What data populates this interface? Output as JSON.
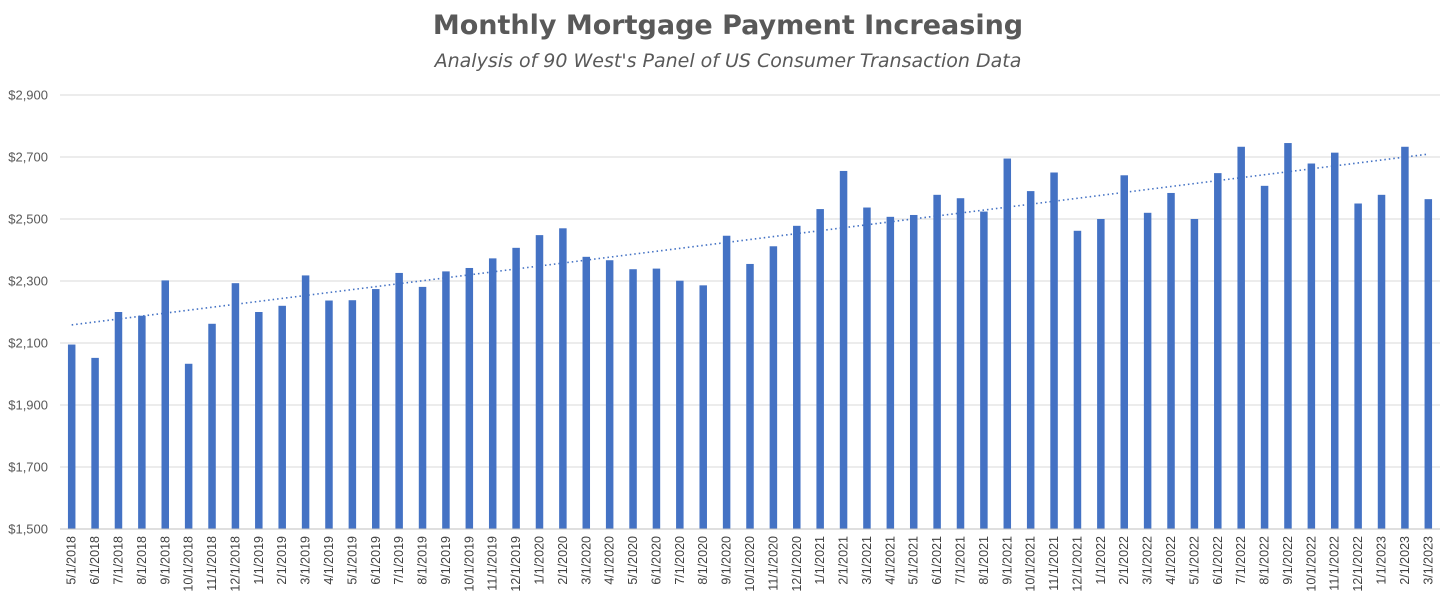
{
  "chart_data": {
    "type": "bar",
    "title": "Monthly Mortgage Payment Increasing",
    "subtitle": "Analysis of 90 West's Panel of US Consumer Transaction Data",
    "xlabel": "",
    "ylabel": "",
    "ylim": [
      1500,
      2900
    ],
    "yticks": [
      1500,
      1700,
      1900,
      2100,
      2300,
      2500,
      2700,
      2900
    ],
    "ytick_labels": [
      "$1,500",
      "$1,700",
      "$1,900",
      "$2,100",
      "$2,300",
      "$2,500",
      "$2,700",
      "$2,900"
    ],
    "grid": true,
    "legend": "none",
    "bar_color": "#4472C4",
    "trendline": {
      "type": "linear",
      "style": "dotted",
      "color": "#4472C4"
    },
    "categories": [
      "5/1/2018",
      "6/1/2018",
      "7/1/2018",
      "8/1/2018",
      "9/1/2018",
      "10/1/2018",
      "11/1/2018",
      "12/1/2018",
      "1/1/2019",
      "2/1/2019",
      "3/1/2019",
      "4/1/2019",
      "5/1/2019",
      "6/1/2019",
      "7/1/2019",
      "8/1/2019",
      "9/1/2019",
      "10/1/2019",
      "11/1/2019",
      "12/1/2019",
      "1/1/2020",
      "2/1/2020",
      "3/1/2020",
      "4/1/2020",
      "5/1/2020",
      "6/1/2020",
      "7/1/2020",
      "8/1/2020",
      "9/1/2020",
      "10/1/2020",
      "11/1/2020",
      "12/1/2020",
      "1/1/2021",
      "2/1/2021",
      "3/1/2021",
      "4/1/2021",
      "5/1/2021",
      "6/1/2021",
      "7/1/2021",
      "8/1/2021",
      "9/1/2021",
      "10/1/2021",
      "11/1/2021",
      "12/1/2021",
      "1/1/2022",
      "2/1/2022",
      "3/1/2022",
      "4/1/2022",
      "5/1/2022",
      "6/1/2022",
      "7/1/2022",
      "8/1/2022",
      "9/1/2022",
      "10/1/2022",
      "11/1/2022",
      "12/1/2022",
      "1/1/2023",
      "2/1/2023",
      "3/1/2023"
    ],
    "values": [
      2095,
      2052,
      2200,
      2188,
      2302,
      2033,
      2162,
      2293,
      2200,
      2220,
      2318,
      2237,
      2238,
      2274,
      2326,
      2281,
      2331,
      2342,
      2373,
      2407,
      2448,
      2470,
      2378,
      2367,
      2338,
      2340,
      2301,
      2286,
      2446,
      2355,
      2412,
      2478,
      2532,
      2655,
      2537,
      2507,
      2513,
      2578,
      2567,
      2524,
      2695,
      2590,
      2650,
      2462,
      2500,
      2641,
      2520,
      2584,
      2500,
      2648,
      2733,
      2607,
      2745,
      2679,
      2714,
      2550,
      2578,
      2733,
      2564
    ]
  }
}
